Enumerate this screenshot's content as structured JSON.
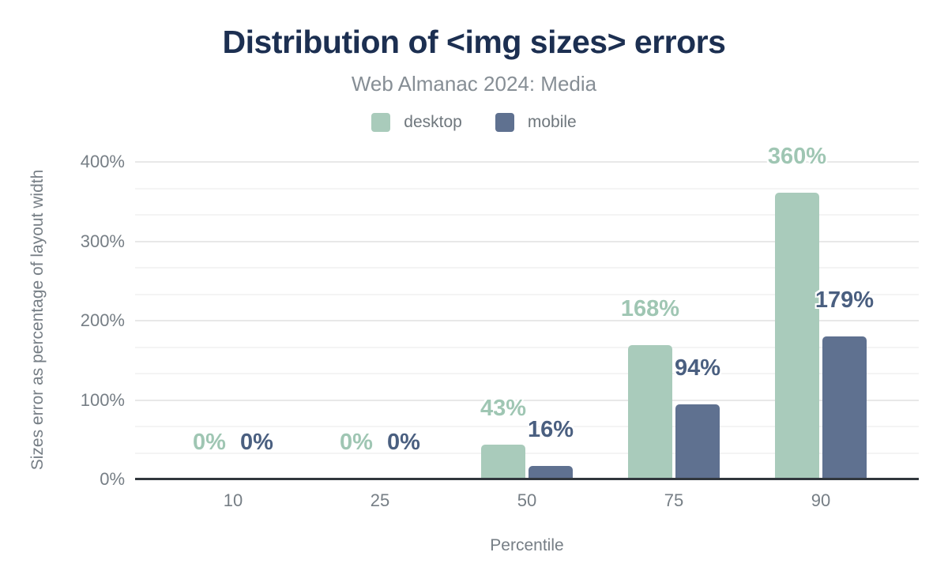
{
  "chart_data": {
    "type": "bar",
    "title": "Distribution of <img sizes> errors",
    "subtitle": "Web Almanac 2024: Media",
    "xlabel": "Percentile",
    "ylabel": "Sizes error as percentage of layout width",
    "categories": [
      "10",
      "25",
      "50",
      "75",
      "90"
    ],
    "series": [
      {
        "name": "desktop",
        "values": [
          0,
          0,
          43,
          168,
          360
        ],
        "labels": [
          "0%",
          "0%",
          "43%",
          "168%",
          "360%"
        ]
      },
      {
        "name": "mobile",
        "values": [
          0,
          0,
          16,
          94,
          179
        ],
        "labels": [
          "0%",
          "0%",
          "16%",
          "94%",
          "179%"
        ]
      }
    ],
    "ylim": [
      0,
      400
    ],
    "yticks": [
      {
        "value": 0,
        "label": "0%"
      },
      {
        "value": 100,
        "label": "100%"
      },
      {
        "value": 200,
        "label": "200%"
      },
      {
        "value": 300,
        "label": "300%"
      },
      {
        "value": 400,
        "label": "400%"
      }
    ],
    "grid": "on",
    "legend_position": "top"
  },
  "colors": {
    "desktop_bar": "#a9cbbb",
    "mobile_bar": "#5f7190",
    "desktop_label": "#9fc6b3",
    "mobile_label": "#4a5f80",
    "title": "#1c2f51",
    "subtitle": "#868e95",
    "axis_text": "#767e85",
    "legend_text": "#6f777d",
    "axis_line": "#31373d",
    "grid_major": "#e8e8e8",
    "grid_minor": "#f4f4f4",
    "background": "#ffffff"
  }
}
